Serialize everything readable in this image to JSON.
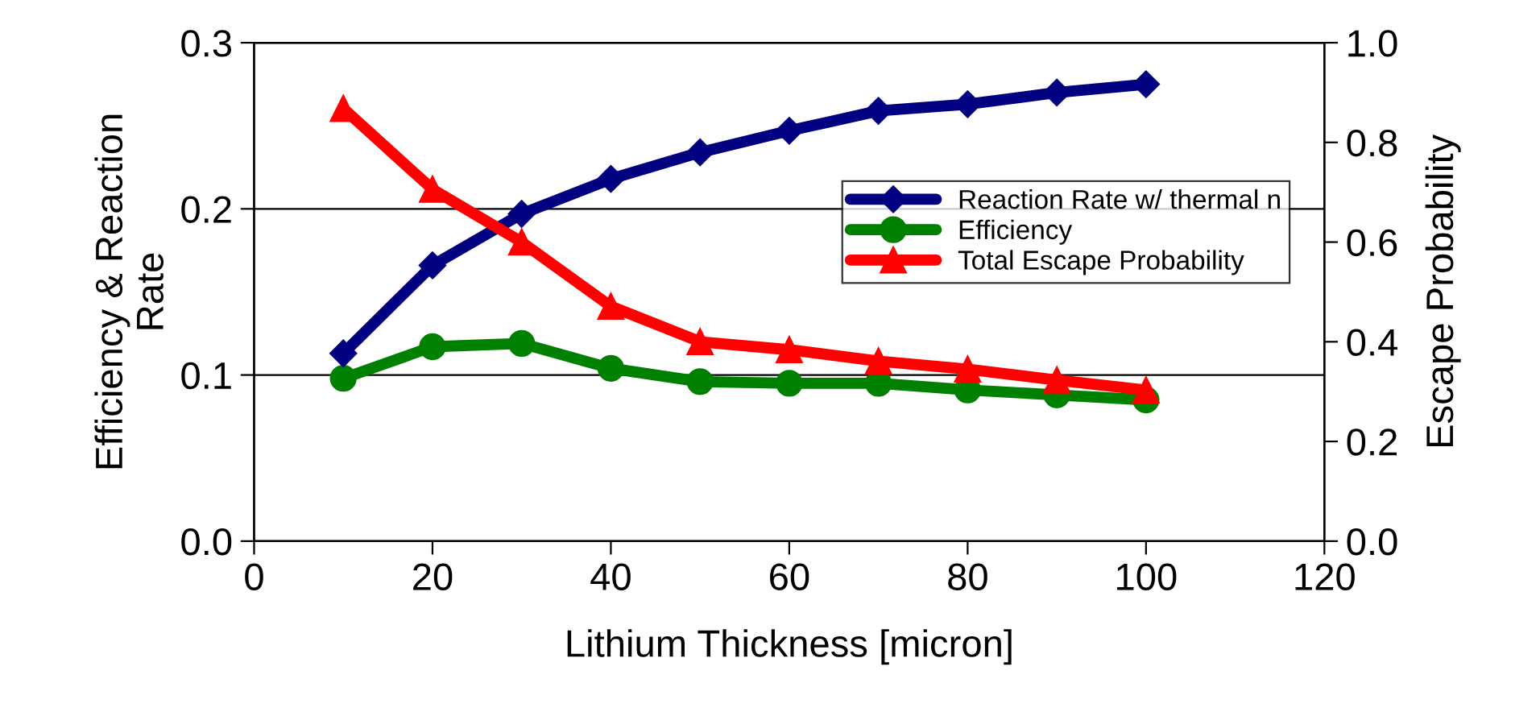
{
  "chart_data": {
    "type": "line",
    "xlabel": "Lithium Thickness [micron]",
    "ylabel": "Efficiency & Reaction\nRate",
    "y2label": "Escape Probability",
    "x": [
      10,
      20,
      30,
      40,
      50,
      60,
      70,
      80,
      90,
      100
    ],
    "series": [
      {
        "name": "Reaction Rate w/ thermal n",
        "color": "#000080",
        "marker": "diamond",
        "values": [
          0.113,
          0.166,
          0.197,
          0.218,
          0.234,
          0.247,
          0.259,
          0.263,
          0.27,
          0.275
        ]
      },
      {
        "name": "Efficiency",
        "color": "#008000",
        "marker": "circle",
        "values": [
          0.098,
          0.117,
          0.119,
          0.104,
          0.096,
          0.095,
          0.095,
          0.091,
          0.088,
          0.085
        ]
      },
      {
        "name": "Total Escape Probability",
        "color": "#ff0000",
        "marker": "triangle",
        "axis": "y2",
        "values": [
          0.868,
          0.706,
          0.6,
          0.471,
          0.4,
          0.384,
          0.361,
          0.345,
          0.323,
          0.303
        ]
      }
    ],
    "xlim": [
      0,
      120
    ],
    "xticks": [
      0,
      20,
      40,
      60,
      80,
      100,
      120
    ],
    "ylim": [
      0,
      0.3
    ],
    "yticks": [
      {
        "value": 0,
        "label": "0.0"
      },
      0.1,
      0.2,
      0.3
    ],
    "y2lim": [
      0,
      1
    ],
    "y2ticks": [
      {
        "value": 0,
        "label": "0.0"
      },
      {
        "value": 0.2,
        "label": "0.2"
      },
      {
        "value": 0.4,
        "label": "0.4"
      },
      {
        "value": 0.6,
        "label": "0.6"
      },
      {
        "value": 0.8,
        "label": "0.8"
      },
      {
        "value": 1,
        "label": "1.0"
      }
    ],
    "grid": "y",
    "legend": "right",
    "line_style": "solid"
  }
}
